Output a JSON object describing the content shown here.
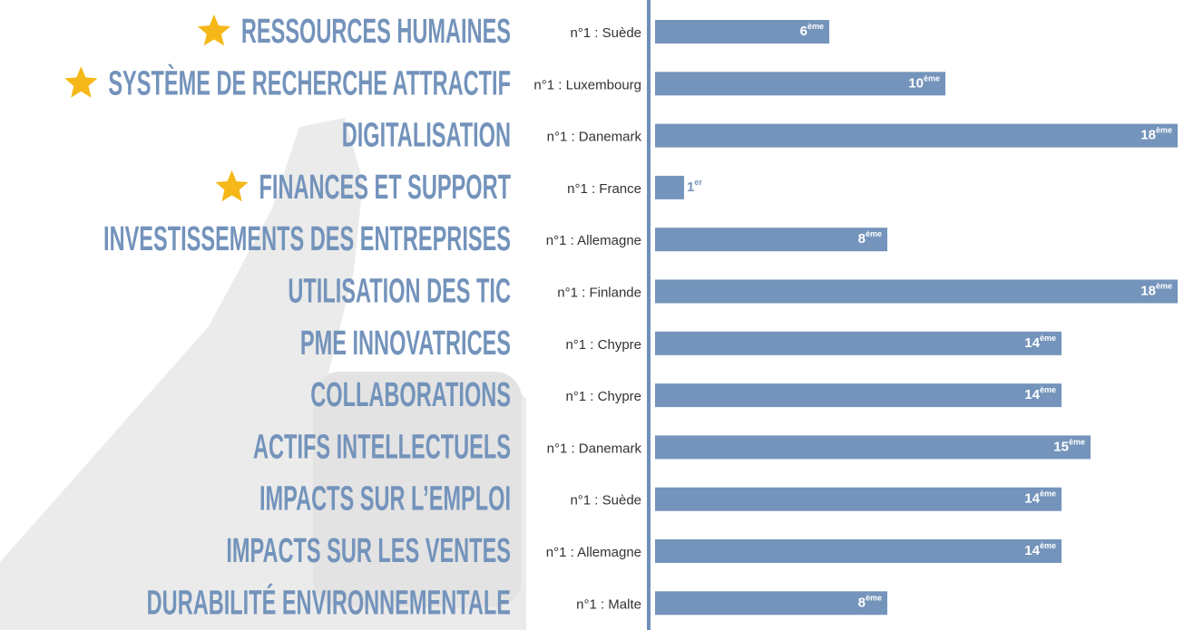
{
  "chart_data": {
    "type": "bar",
    "orientation": "horizontal",
    "categories": [
      "RESSOURCES HUMAINES",
      "SYSTÈME DE RECHERCHE ATTRACTIF",
      "DIGITALISATION",
      "FINANCES ET SUPPORT",
      "INVESTISSEMENTS DES ENTREPRISES",
      "UTILISATION DES TIC",
      "PME INNOVATRICES",
      "COLLABORATIONS",
      "ACTIFS INTELLECTUELS",
      "IMPACTS SUR L’EMPLOI",
      "IMPACTS SUR LES VENTES",
      "DURABILITÉ ENVIRONNEMENTALE"
    ],
    "leaders": [
      "n°1 : Suède",
      "n°1 : Luxembourg",
      "n°1 : Danemark",
      "n°1 : France",
      "n°1 : Allemagne",
      "n°1 : Finlande",
      "n°1 : Chypre",
      "n°1 : Chypre",
      "n°1 : Danemark",
      "n°1 : Suède",
      "n°1 : Allemagne",
      "n°1 : Malte"
    ],
    "values": [
      6,
      10,
      18,
      1,
      8,
      18,
      14,
      14,
      15,
      14,
      14,
      8
    ],
    "value_labels": [
      "6ème",
      "10ème",
      "18ème",
      "1er",
      "8ème",
      "18ème",
      "14ème",
      "14ème",
      "15ème",
      "14ème",
      "14ème",
      "8ème"
    ],
    "starred": [
      true,
      true,
      false,
      true,
      false,
      false,
      false,
      false,
      false,
      false,
      false,
      false
    ],
    "color": "#7494bb",
    "star_color": "#f5b818",
    "xlim": [
      0,
      18
    ]
  }
}
